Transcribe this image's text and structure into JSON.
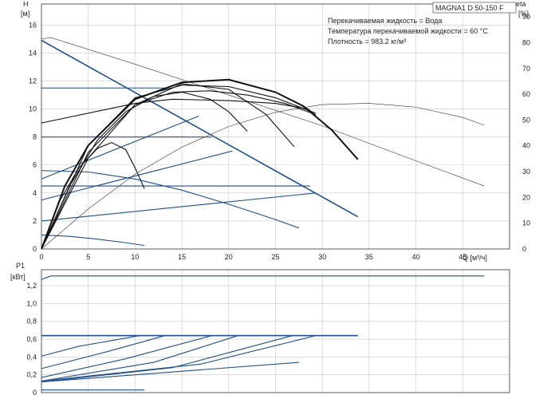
{
  "title_box": "MAGNA1 D 50-150 F",
  "info": [
    "Перекачиваемая жидкость = Вода",
    "Температура перекачиваемой жидкости = 60 °C",
    "Плотность = 983.2 кг/м³"
  ],
  "chart_data": [
    {
      "type": "line",
      "name": "head",
      "ylabel_line1": "H",
      "ylabel_line2": "[м]",
      "y2label_line1": "eta",
      "y2label_line2": "[%]",
      "xlabel": "Q [м³/ч]",
      "xlim": [
        0,
        50
      ],
      "ylim": [
        0,
        17.5
      ],
      "y2lim": [
        0,
        95
      ],
      "x_ticks": [
        0,
        5,
        10,
        15,
        20,
        25,
        30,
        35,
        40,
        45
      ],
      "y_ticks": [
        0,
        2,
        4,
        6,
        8,
        10,
        12,
        14,
        16
      ],
      "y2_ticks": [
        0,
        10,
        20,
        30,
        40,
        50,
        60,
        70,
        80,
        90
      ],
      "grid": true,
      "series": [
        {
          "style": "blue2",
          "x": [
            0,
            33.8
          ],
          "y": [
            14.9,
            2.3
          ]
        },
        {
          "style": "blue",
          "x": [
            0,
            13.2
          ],
          "y": [
            11.5,
            11.5
          ]
        },
        {
          "style": "blue",
          "x": [
            0,
            18.2
          ],
          "y": [
            8.0,
            8.0
          ]
        },
        {
          "style": "blue",
          "x": [
            0,
            28.7
          ],
          "y": [
            4.5,
            4.5
          ]
        },
        {
          "style": "blue",
          "x": [
            0,
            16.8
          ],
          "y": [
            5.0,
            9.5
          ]
        },
        {
          "style": "blue",
          "x": [
            0,
            20.4
          ],
          "y": [
            3.5,
            7.0
          ]
        },
        {
          "style": "blue",
          "x": [
            0,
            29.3
          ],
          "y": [
            2.0,
            4.0
          ]
        },
        {
          "style": "blue",
          "x": [
            0,
            5,
            10,
            15,
            20,
            25,
            27.5
          ],
          "y": [
            5.6,
            5.5,
            5.0,
            4.2,
            3.2,
            2.1,
            1.5
          ]
        },
        {
          "style": "blue",
          "x": [
            0,
            3,
            6,
            9,
            11
          ],
          "y": [
            1.0,
            0.9,
            0.7,
            0.45,
            0.25
          ]
        },
        {
          "style": "thin",
          "x": [
            0,
            1,
            10,
            20,
            30,
            40,
            47.3
          ],
          "y": [
            15.0,
            15.1,
            13.2,
            11.0,
            8.8,
            6.3,
            4.5
          ]
        },
        {
          "style": "black",
          "x": [
            0,
            2,
            4,
            6,
            7.5,
            9,
            10,
            11
          ],
          "y": [
            0,
            3.5,
            5.8,
            7.2,
            7.6,
            7.1,
            5.8,
            4.3
          ]
        },
        {
          "style": "black",
          "x": [
            0,
            3,
            6,
            9,
            12,
            15,
            18,
            20,
            22
          ],
          "y": [
            0,
            4.5,
            7.8,
            9.8,
            10.9,
            11.2,
            10.7,
            9.8,
            8.4
          ]
        },
        {
          "style": "black",
          "x": [
            0,
            5,
            10,
            15,
            20,
            24,
            27
          ],
          "y": [
            0,
            6.5,
            10.3,
            11.8,
            11.4,
            9.6,
            7.3
          ]
        },
        {
          "style": "black",
          "x": [
            0,
            5,
            10,
            14,
            18,
            22,
            26,
            29.3
          ],
          "y": [
            0,
            6.9,
            10.3,
            11.2,
            11.3,
            11.0,
            10.4,
            9.6
          ]
        },
        {
          "style": "black",
          "x": [
            0,
            5,
            10,
            15,
            20,
            25,
            29.3
          ],
          "y": [
            0,
            7.4,
            10.8,
            11.7,
            11.6,
            10.8,
            9.7
          ]
        },
        {
          "style": "black",
          "x": [
            0,
            10,
            14,
            20,
            25,
            28.5,
            29.3
          ],
          "y": [
            9.0,
            10.4,
            10.7,
            10.6,
            10.4,
            10.0,
            9.5
          ]
        },
        {
          "style": "blackb",
          "x": [
            0,
            2.5,
            5,
            10,
            15,
            20,
            25,
            28,
            31,
            33.8
          ],
          "y": [
            0,
            4.5,
            7.4,
            10.7,
            11.9,
            12.1,
            11.2,
            10.2,
            8.5,
            6.4
          ]
        },
        {
          "style": "thin",
          "x": [
            0,
            5,
            10,
            15,
            20,
            25,
            30,
            35,
            40,
            45,
            47.3
          ],
          "y2": [
            0,
            15.5,
            29,
            39.5,
            47.5,
            53,
            56,
            56.5,
            55,
            51,
            48
          ]
        }
      ]
    },
    {
      "type": "line",
      "name": "power",
      "ylabel_line1": "P1",
      "ylabel_line2": "[кВт]",
      "xlim": [
        0,
        50
      ],
      "ylim": [
        0,
        1.38
      ],
      "y_ticks": [
        0,
        0.2,
        0.4,
        0.6,
        0.8,
        1.0,
        1.2
      ],
      "y_tick_labels": [
        "0",
        "0,2",
        "0,4",
        "0,6",
        "0,8",
        "1,0",
        "1,2"
      ],
      "grid": true,
      "series": [
        {
          "style": "blue",
          "x": [
            0,
            1,
            47.3
          ],
          "y": [
            1.27,
            1.31,
            1.31
          ]
        },
        {
          "style": "blue2",
          "x": [
            0,
            33.8
          ],
          "y": [
            0.64,
            0.64
          ]
        },
        {
          "style": "blue",
          "x": [
            0,
            11
          ],
          "y": [
            0.03,
            0.03
          ]
        },
        {
          "style": "blue",
          "x": [
            0,
            10,
            27.5
          ],
          "y": [
            0.12,
            0.2,
            0.34
          ]
        },
        {
          "style": "blue",
          "x": [
            0,
            4,
            10.5
          ],
          "y": [
            0.41,
            0.52,
            0.64
          ]
        },
        {
          "style": "blue",
          "x": [
            0,
            7,
            13.2
          ],
          "y": [
            0.27,
            0.46,
            0.64
          ]
        },
        {
          "style": "blue",
          "x": [
            0,
            9,
            18.2
          ],
          "y": [
            0.17,
            0.38,
            0.64
          ]
        },
        {
          "style": "blue",
          "x": [
            0,
            12,
            21
          ],
          "y": [
            0.13,
            0.34,
            0.64
          ]
        },
        {
          "style": "blue",
          "x": [
            0,
            14,
            26.8
          ],
          "y": [
            0.12,
            0.28,
            0.64
          ]
        },
        {
          "style": "blue",
          "x": [
            0,
            17,
            29.3
          ],
          "y": [
            0.13,
            0.32,
            0.64
          ]
        }
      ]
    }
  ]
}
